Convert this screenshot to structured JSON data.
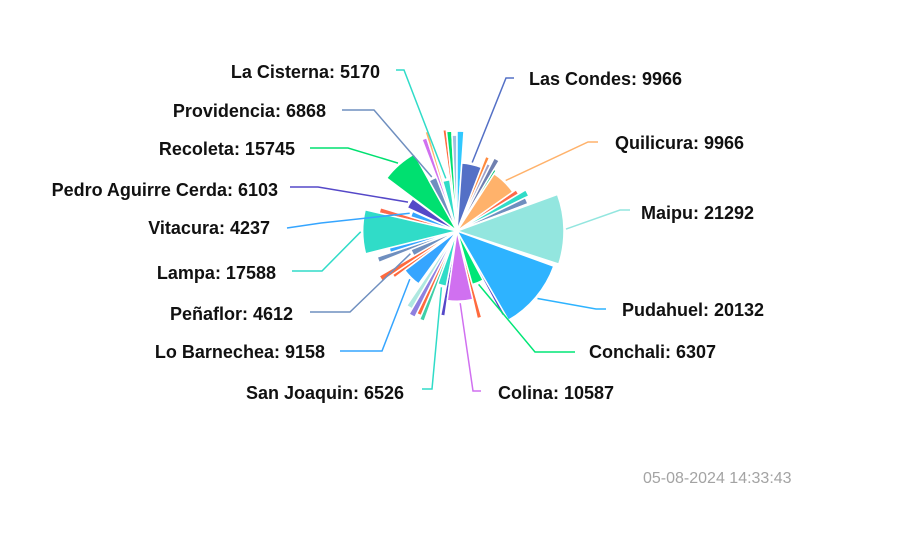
{
  "timestamp": "05-08-2024 14:33:43",
  "chart_data": {
    "type": "pie",
    "subtype": "nightingale-rose",
    "categories": [
      "Las Condes",
      "Quilicura",
      "Maipu",
      "Pudahuel",
      "Conchali",
      "Colina",
      "San Joaquin",
      "Lo Barnechea",
      "Peñaflor",
      "Lampa",
      "Vitacura",
      "Pedro Aguirre Cerda",
      "Recoleta",
      "Providencia",
      "La Cisterna"
    ],
    "values": [
      9966,
      9966,
      21292,
      20132,
      6307,
      10587,
      6526,
      9158,
      4612,
      17588,
      4237,
      6103,
      15745,
      6868,
      5170
    ],
    "labels": [
      "Las Condes: 9966",
      "Quilicura: 9966",
      "Maipu: 21292",
      "Pudahuel: 20132",
      "Conchali: 6307",
      "Colina: 10587",
      "San Joaquin: 6526",
      "Lo Barnechea: 9158",
      "Peñaflor: 4612",
      "Lampa: 17588",
      "Vitacura: 4237",
      "Pedro Aguirre Cerda: 6103",
      "Recoleta: 15745",
      "Providencia: 6868",
      "La Cisterna: 5170"
    ],
    "colors": [
      "#5470c6",
      "#ffb26b",
      "#93e6df",
      "#2eb3ff",
      "#00e676",
      "#d070f0",
      "#30dcc8",
      "#35a5ff",
      "#6f8fbf",
      "#30dcc8",
      "#35a5ff",
      "#5548c8",
      "#00e070",
      "#6f8fbf",
      "#30dcc8"
    ],
    "legend": "none"
  }
}
